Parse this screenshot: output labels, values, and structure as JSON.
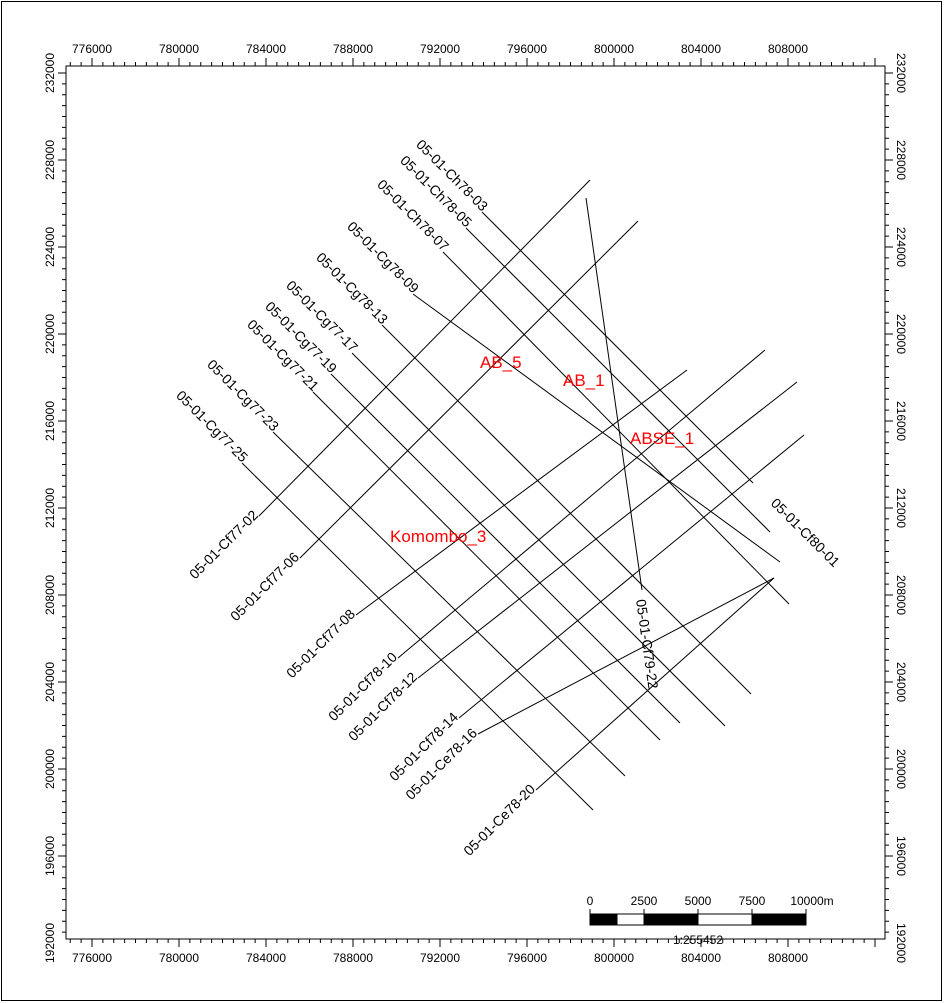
{
  "map": {
    "frame_color": "#000000",
    "well_color": "#ff0000",
    "x_ticks": [
      "776000",
      "780000",
      "784000",
      "788000",
      "792000",
      "796000",
      "800000",
      "804000",
      "808000"
    ],
    "y_ticks": [
      "232000",
      "228000",
      "224000",
      "220000",
      "216000",
      "212000",
      "208000",
      "204000",
      "200000",
      "196000",
      "192000"
    ],
    "seismic_lines": [
      {
        "id": "05-01-Ch78-03",
        "label_end": "NW"
      },
      {
        "id": "05-01-Ch78-05",
        "label_end": "NW"
      },
      {
        "id": "05-01-Ch78-07",
        "label_end": "NW"
      },
      {
        "id": "05-01-Cg78-09",
        "label_end": "NW"
      },
      {
        "id": "05-01-Cg78-13",
        "label_end": "NW"
      },
      {
        "id": "05-01-Cg77-17",
        "label_end": "NW"
      },
      {
        "id": "05-01-Cg77-19",
        "label_end": "NW"
      },
      {
        "id": "05-01-Cg77-21",
        "label_end": "NW"
      },
      {
        "id": "05-01-Cg77-23",
        "label_end": "NW"
      },
      {
        "id": "05-01-Cg77-25",
        "label_end": "NW"
      },
      {
        "id": "05-01-Cf80-01",
        "label_end": "SE"
      },
      {
        "id": "05-01-Cf77-02",
        "label_end": "SW"
      },
      {
        "id": "05-01-Cf77-06",
        "label_end": "SW"
      },
      {
        "id": "05-01-Cf77-08",
        "label_end": "SW"
      },
      {
        "id": "05-01-Cf78-10",
        "label_end": "SW"
      },
      {
        "id": "05-01-Cf78-12",
        "label_end": "SW"
      },
      {
        "id": "05-01-Cf78-14",
        "label_end": "SW"
      },
      {
        "id": "05-01-Ce78-16",
        "label_end": "SW"
      },
      {
        "id": "05-01-Ce78-20",
        "label_end": "SW"
      },
      {
        "id": "05-01-Cf79-22",
        "label_end": "S"
      }
    ],
    "wells": [
      "AB_5",
      "AB_1",
      "ABSE_1",
      "Komombo_3"
    ],
    "scale_bar": {
      "labels": [
        "0",
        "2500",
        "5000",
        "7500",
        "10000m"
      ],
      "ratio": "1:255452"
    }
  }
}
